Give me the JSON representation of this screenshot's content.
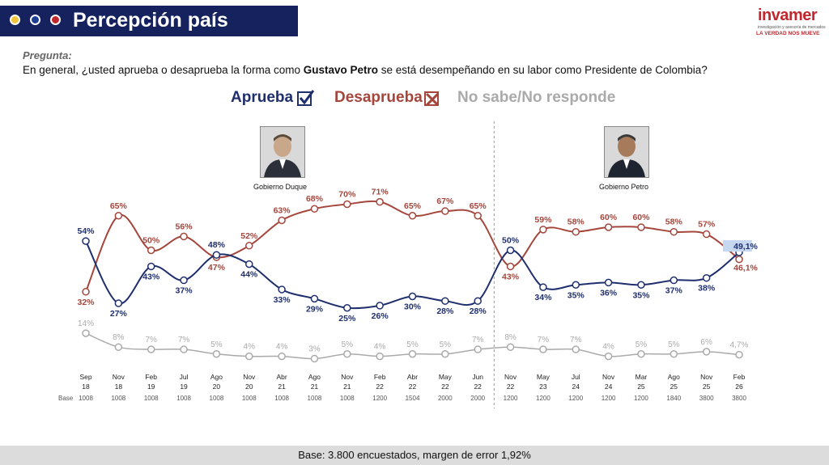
{
  "header": {
    "title": "Percepción país"
  },
  "logo": {
    "name": "invamer",
    "subtitle": "investigación y asesoría de mercados",
    "tagline": "LA VERDAD NOS MUEVE"
  },
  "question": {
    "label": "Pregunta:",
    "text_before": "En general, ¿usted aprueba o desaprueba la forma como ",
    "text_bold": "Gustavo Petro",
    "text_after": " se está desempeñando en su labor como Presidente de Colombia?"
  },
  "legend": {
    "approve": "Aprueba",
    "disapprove": "Desaprueba",
    "no_answer": "No sabe/No responde"
  },
  "governments": {
    "duque": "Gobierno Duque",
    "petro": "Gobierno Petro"
  },
  "footer": {
    "text": "Base: 3.800 encuestados, margen de error 1,92%"
  },
  "colors": {
    "approve": "#1f2f6e",
    "disapprove": "#a4463c",
    "no_answer": "#aaaaaa",
    "header": "#15225e"
  },
  "chart_data": {
    "type": "line",
    "x_month": [
      "Sep",
      "Nov",
      "Feb",
      "Jul",
      "Ago",
      "Nov",
      "Abr",
      "Ago",
      "Nov",
      "Feb",
      "Abr",
      "May",
      "Jun",
      "Nov",
      "May",
      "Jul",
      "Nov",
      "Mar",
      "Ago",
      "Nov",
      "Feb"
    ],
    "x_year": [
      "18",
      "18",
      "19",
      "19",
      "20",
      "20",
      "21",
      "21",
      "21",
      "22",
      "22",
      "22",
      "22",
      "22",
      "23",
      "24",
      "24",
      "25",
      "25",
      "25",
      "26"
    ],
    "base_label": "Base",
    "base": [
      "1008",
      "1008",
      "1008",
      "1008",
      "1008",
      "1008",
      "1008",
      "1008",
      "1008",
      "1200",
      "1504",
      "2000",
      "2000",
      "1200",
      "1200",
      "1200",
      "1200",
      "1200",
      "1840",
      "3800",
      "3800"
    ],
    "series": [
      {
        "name": "Aprueba",
        "values": [
          54,
          27,
          43,
          37,
          48,
          44,
          33,
          29,
          25,
          26,
          30,
          28,
          28,
          50,
          34,
          35,
          36,
          35,
          37,
          38,
          49.1
        ],
        "labels": [
          "54%",
          "27%",
          "43%",
          "37%",
          "48%",
          "44%",
          "33%",
          "29%",
          "25%",
          "26%",
          "30%",
          "28%",
          "28%",
          "50%",
          "34%",
          "35%",
          "36%",
          "35%",
          "37%",
          "38%",
          "49,1%"
        ]
      },
      {
        "name": "Desaprueba",
        "values": [
          32,
          65,
          50,
          56,
          47,
          52,
          63,
          68,
          70,
          71,
          65,
          67,
          65,
          43,
          59,
          58,
          60,
          60,
          58,
          57,
          46.1
        ],
        "labels": [
          "32%",
          "65%",
          "50%",
          "56%",
          "47%",
          "52%",
          "63%",
          "68%",
          "70%",
          "71%",
          "65%",
          "67%",
          "65%",
          "43%",
          "59%",
          "58%",
          "60%",
          "60%",
          "58%",
          "57%",
          "46,1%"
        ]
      },
      {
        "name": "No sabe/No responde",
        "values": [
          14,
          8,
          7,
          7,
          5,
          4,
          4,
          3,
          5,
          4,
          5,
          5,
          7,
          8,
          7,
          7,
          4,
          5,
          5,
          6,
          4.7
        ],
        "labels": [
          "14%",
          "8%",
          "7%",
          "7%",
          "5%",
          "4%",
          "4%",
          "3%",
          "5%",
          "4%",
          "5%",
          "5%",
          "7%",
          "8%",
          "7%",
          "7%",
          "4%",
          "5%",
          "5%",
          "6%",
          "4,7%"
        ]
      }
    ],
    "divider_after_index": 12
  }
}
